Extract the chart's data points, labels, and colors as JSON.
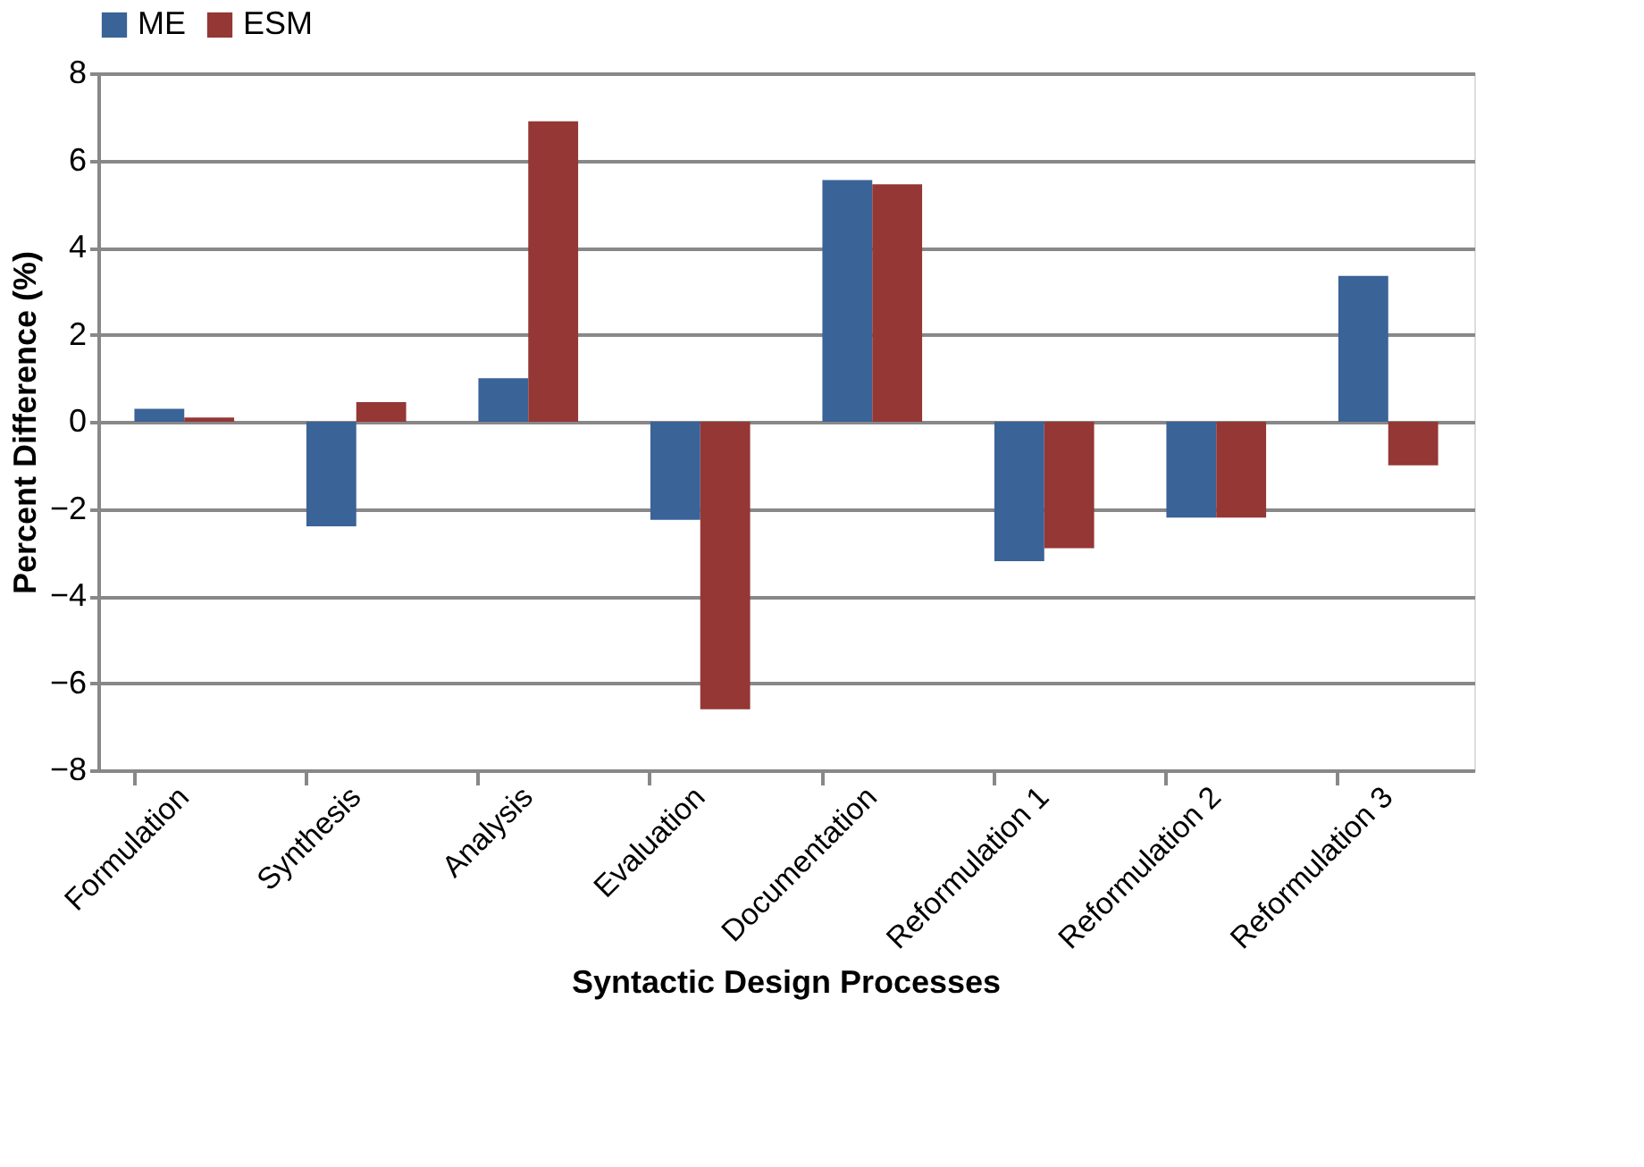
{
  "chart_data": {
    "type": "bar",
    "xlabel": "Syntactic Design Processes",
    "ylabel": "Percent Difference (%)",
    "categories": [
      "Formulation",
      "Synthesis",
      "Analysis",
      "Evaluation",
      "Documentation",
      "Reformulation 1",
      "Reformulation 2",
      "Reformulation 3"
    ],
    "series": [
      {
        "name": "ME",
        "color": "#3a6397",
        "values": [
          0.3,
          -2.4,
          1.0,
          -2.25,
          5.55,
          -3.2,
          -2.2,
          3.35
        ]
      },
      {
        "name": "ESM",
        "color": "#953735",
        "values": [
          0.1,
          0.45,
          6.9,
          -6.6,
          5.45,
          -2.9,
          -2.2,
          -1.0
        ]
      }
    ],
    "ylim": [
      -8,
      8
    ],
    "yticks": [
      -8,
      -6,
      -4,
      -2,
      0,
      2,
      4,
      6,
      8
    ],
    "grid": "y",
    "legend": "top"
  }
}
